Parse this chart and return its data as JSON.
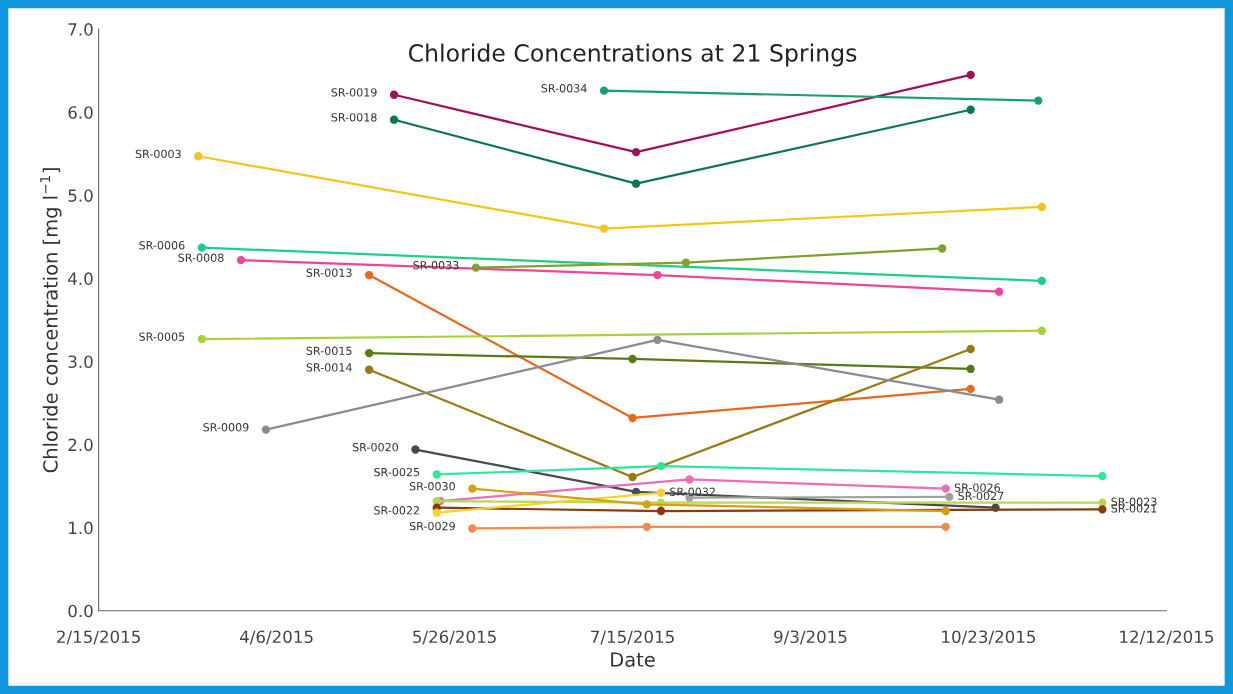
{
  "chart_data": {
    "type": "line",
    "title": "Chloride Concentrations at 21 Springs",
    "xlabel": "Date",
    "ylabel": "Chloride concentration [mg l$^{−1}$]",
    "xlim": [
      "2015-02-15",
      "2015-12-12"
    ],
    "xticks": [
      {
        "value": "2015-02-15",
        "label": "2/15/2015"
      },
      {
        "value": "2015-04-06",
        "label": "4/6/2015"
      },
      {
        "value": "2015-05-26",
        "label": "5/26/2015"
      },
      {
        "value": "2015-07-15",
        "label": "7/15/2015"
      },
      {
        "value": "2015-09-03",
        "label": "9/3/2015"
      },
      {
        "value": "2015-10-23",
        "label": "10/23/2015"
      },
      {
        "value": "2015-12-12",
        "label": "12/12/2015"
      }
    ],
    "ylim": [
      0,
      7
    ],
    "yticks": [
      {
        "value": 0,
        "label": "0.0"
      },
      {
        "value": 1,
        "label": "1.0"
      },
      {
        "value": 2,
        "label": "2.0"
      },
      {
        "value": 3,
        "label": "3.0"
      },
      {
        "value": 4,
        "label": "4.0"
      },
      {
        "value": 5,
        "label": "5.0"
      },
      {
        "value": 6,
        "label": "6.0"
      },
      {
        "value": 7,
        "label": "7.0"
      }
    ],
    "marker": "circle",
    "line_style": "solid",
    "grid": false,
    "series": [
      {
        "color": "#f5c518",
        "x": [
          "2015-03-15",
          "2015-07-07",
          "2015-11-07"
        ],
        "values": [
          5.47,
          4.6,
          4.86
        ]
      },
      {
        "color": "#1ecf8a",
        "x": [
          "2015-03-16",
          "2015-11-07"
        ],
        "values": [
          4.37,
          3.97
        ]
      },
      {
        "color": "#f0439a",
        "x": [
          "2015-03-27",
          "2015-07-22",
          "2015-10-26"
        ],
        "values": [
          4.22,
          4.04,
          3.84
        ]
      },
      {
        "color": "#a3105a",
        "x": [
          "2015-05-09",
          "2015-07-16",
          "2015-10-18"
        ],
        "values": [
          6.21,
          5.52,
          6.45
        ]
      },
      {
        "color": "#0b7a4a",
        "x": [
          "2015-05-09",
          "2015-07-16",
          "2015-10-18"
        ],
        "values": [
          5.91,
          5.14,
          6.03
        ]
      },
      {
        "color": "#1aa06a",
        "x": [
          "2015-07-07",
          "2015-11-06"
        ],
        "values": [
          6.26,
          6.14
        ]
      },
      {
        "color": "#7fa22e",
        "x": [
          "2015-06-01",
          "2015-07-30",
          "2015-10-10"
        ],
        "values": [
          4.13,
          4.19,
          4.36
        ]
      },
      {
        "color": "#e8681c",
        "x": [
          "2015-05-02",
          "2015-07-15",
          "2015-10-18"
        ],
        "values": [
          4.04,
          2.32,
          2.67
        ]
      },
      {
        "color": "#a8d03c",
        "x": [
          "2015-03-16",
          "2015-11-07"
        ],
        "values": [
          3.27,
          3.37
        ]
      },
      {
        "color": "#5a7a1a",
        "x": [
          "2015-05-02",
          "2015-07-15",
          "2015-10-18"
        ],
        "values": [
          3.1,
          3.03,
          2.91
        ]
      },
      {
        "color": "#9a7a10",
        "x": [
          "2015-05-02",
          "2015-07-15",
          "2015-10-18"
        ],
        "values": [
          2.9,
          1.61,
          3.15
        ]
      },
      {
        "color": "#8a8a95",
        "x": [
          "2015-04-03",
          "2015-07-22",
          "2015-10-26"
        ],
        "values": [
          2.18,
          3.26,
          2.54
        ]
      },
      {
        "color": "#4a4a4a",
        "x": [
          "2015-05-15",
          "2015-07-16",
          "2015-10-25"
        ],
        "values": [
          1.94,
          1.43,
          1.24
        ]
      },
      {
        "color": "#2de89a",
        "x": [
          "2015-05-21",
          "2015-07-23",
          "2015-11-24"
        ],
        "values": [
          1.64,
          1.74,
          1.62
        ]
      },
      {
        "color": "#f06cb4",
        "x": [
          "2015-05-22",
          "2015-07-31",
          "2015-10-11"
        ],
        "values": [
          1.32,
          1.58,
          1.47
        ]
      },
      {
        "color": "#a0a0a0",
        "x": [
          "2015-07-31",
          "2015-10-12"
        ],
        "values": [
          1.36,
          1.37
        ]
      },
      {
        "color": "#b8d850",
        "x": [
          "2015-05-21",
          "2015-07-23",
          "2015-11-24"
        ],
        "values": [
          1.32,
          1.3,
          1.3
        ]
      },
      {
        "color": "#8b3a0a",
        "x": [
          "2015-05-21",
          "2015-07-23",
          "2015-11-24"
        ],
        "values": [
          1.24,
          1.2,
          1.22
        ]
      },
      {
        "color": "#f8d030",
        "x": [
          "2015-05-21",
          "2015-07-23"
        ],
        "values": [
          1.18,
          1.42
        ]
      },
      {
        "color": "#d4a010",
        "x": [
          "2015-05-31",
          "2015-07-19",
          "2015-10-11"
        ],
        "values": [
          1.47,
          1.28,
          1.2
        ]
      },
      {
        "color": "#f58a4a",
        "x": [
          "2015-05-31",
          "2015-07-19",
          "2015-10-11"
        ],
        "values": [
          0.99,
          1.01,
          1.01
        ]
      }
    ],
    "annotations": [
      {
        "text": "SR-0003",
        "x": "2015-03-15",
        "y": 5.47
      },
      {
        "text": "SR-0006",
        "x": "2015-03-16",
        "y": 4.37
      },
      {
        "text": "SR-0008",
        "x": "2015-03-27",
        "y": 4.22
      },
      {
        "text": "SR-0019",
        "x": "2015-05-09",
        "y": 6.21
      },
      {
        "text": "SR-0018",
        "x": "2015-05-09",
        "y": 5.91
      },
      {
        "text": "SR-0034",
        "x": "2015-07-07",
        "y": 6.26
      },
      {
        "text": "SR-0033",
        "x": "2015-06-01",
        "y": 4.13
      },
      {
        "text": "SR-0013",
        "x": "2015-05-02",
        "y": 4.04
      },
      {
        "text": "SR-0005",
        "x": "2015-03-16",
        "y": 3.27
      },
      {
        "text": "SR-0015",
        "x": "2015-05-02",
        "y": 3.1
      },
      {
        "text": "SR-0014",
        "x": "2015-05-02",
        "y": 2.9
      },
      {
        "text": "SR-0009",
        "x": "2015-04-03",
        "y": 2.18
      },
      {
        "text": "SR-0020",
        "x": "2015-05-15",
        "y": 1.94
      },
      {
        "text": "SR-0025",
        "x": "2015-05-21",
        "y": 1.64
      },
      {
        "text": "SR-0030",
        "x": "2015-05-31",
        "y": 1.47
      },
      {
        "text": "SR-0022",
        "x": "2015-05-21",
        "y": 1.18
      },
      {
        "text": "SR-0029",
        "x": "2015-05-31",
        "y": 0.99
      },
      {
        "text": "SR-0032",
        "x": "2015-07-23",
        "y": 1.42
      },
      {
        "text": "SR-0026",
        "x": "2015-10-11",
        "y": 1.47
      },
      {
        "text": "SR-0027",
        "x": "2015-10-12",
        "y": 1.37
      },
      {
        "text": "SR-0023",
        "x": "2015-11-24",
        "y": 1.3
      },
      {
        "text": "SR-0021",
        "x": "2015-11-24",
        "y": 1.22
      }
    ]
  }
}
